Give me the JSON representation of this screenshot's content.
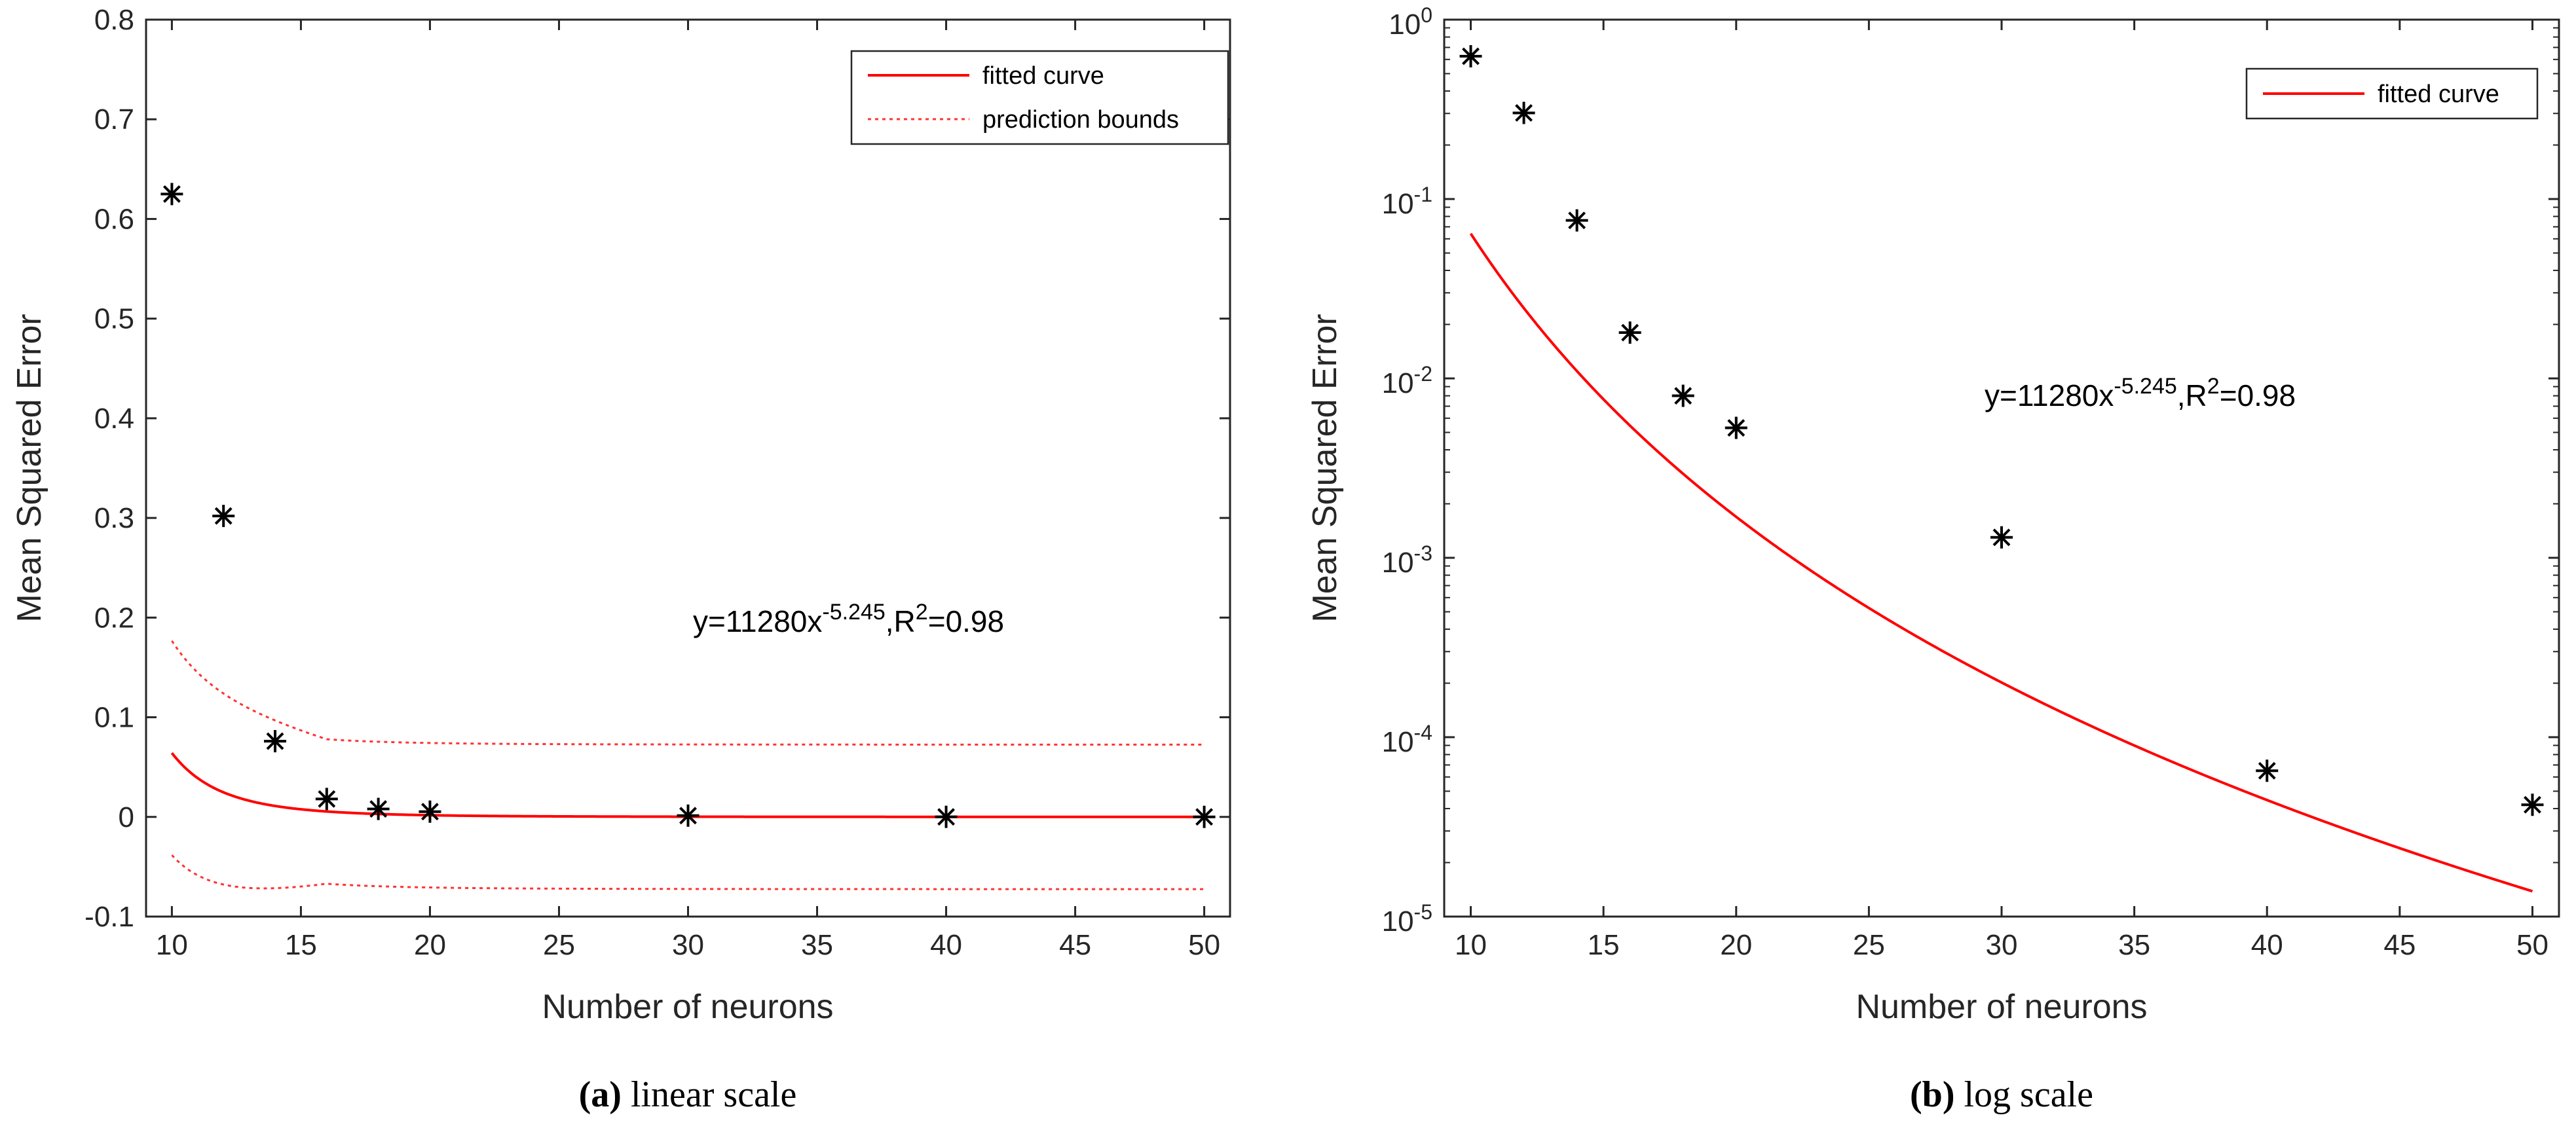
{
  "chart_data": [
    {
      "type": "scatter",
      "scale": "linear",
      "xlabel": "Number of neurons",
      "ylabel": "Mean Squared Error",
      "xlim": [
        9,
        51
      ],
      "ylim": [
        -0.1,
        0.8
      ],
      "xticks": [
        10,
        15,
        20,
        25,
        30,
        35,
        40,
        45,
        50
      ],
      "xtick_labels": [
        "10",
        "15",
        "20",
        "25",
        "30",
        "35",
        "40",
        "45",
        "50"
      ],
      "yticks": [
        -0.1,
        0,
        0.1,
        0.2,
        0.3,
        0.4,
        0.5,
        0.6,
        0.7,
        0.8
      ],
      "ytick_labels": [
        "-0.1",
        "0",
        "0.1",
        "0.2",
        "0.3",
        "0.4",
        "0.5",
        "0.6",
        "0.7",
        "0.8"
      ],
      "points": {
        "x": [
          10,
          12,
          14,
          16,
          18,
          20,
          30,
          40,
          50
        ],
        "y": [
          0.625,
          0.302,
          0.076,
          0.018,
          0.008,
          0.0053,
          0.0013,
          6.5e-05,
          4.2e-05
        ]
      },
      "fit": {
        "a": 11280,
        "b": -5.245,
        "color": "#ff0000"
      },
      "bounds_halfwidth": 0.0725,
      "legend": {
        "fitted": "fitted curve",
        "bounds": "prediction bounds",
        "position": "top-right"
      },
      "annotation": {
        "prefix": "y=11280x",
        "exponent": "-5.245",
        "mid": ",R",
        "sup2": "2",
        "suffix": "=0.98"
      },
      "caption": {
        "label": "(a)",
        "text": " linear scale"
      }
    },
    {
      "type": "scatter",
      "scale": "log",
      "xlabel": "Number of neurons",
      "ylabel": "Mean Squared Error",
      "xlim": [
        9,
        51
      ],
      "ylim_exp": [
        -5,
        0
      ],
      "xticks": [
        10,
        15,
        20,
        25,
        30,
        35,
        40,
        45,
        50
      ],
      "xtick_labels": [
        "10",
        "15",
        "20",
        "25",
        "30",
        "35",
        "40",
        "45",
        "50"
      ],
      "ytick_exponents": [
        "0",
        "-1",
        "-2",
        "-3",
        "-4",
        "-5"
      ],
      "ytick_base": "10",
      "points": {
        "x": [
          10,
          12,
          14,
          16,
          18,
          20,
          30,
          40,
          50
        ],
        "y": [
          0.625,
          0.302,
          0.076,
          0.018,
          0.008,
          0.0053,
          0.0013,
          6.5e-05,
          4.2e-05
        ]
      },
      "fit": {
        "a": 11280,
        "b": -5.245,
        "color": "#ff0000"
      },
      "legend": {
        "fitted": "fitted curve",
        "position": "top-right"
      },
      "annotation": {
        "prefix": "y=11280x",
        "exponent": "-5.245",
        "mid": ",R",
        "sup2": "2",
        "suffix": "=0.98"
      },
      "caption": {
        "label": "(b)",
        "text": " log scale"
      }
    }
  ]
}
